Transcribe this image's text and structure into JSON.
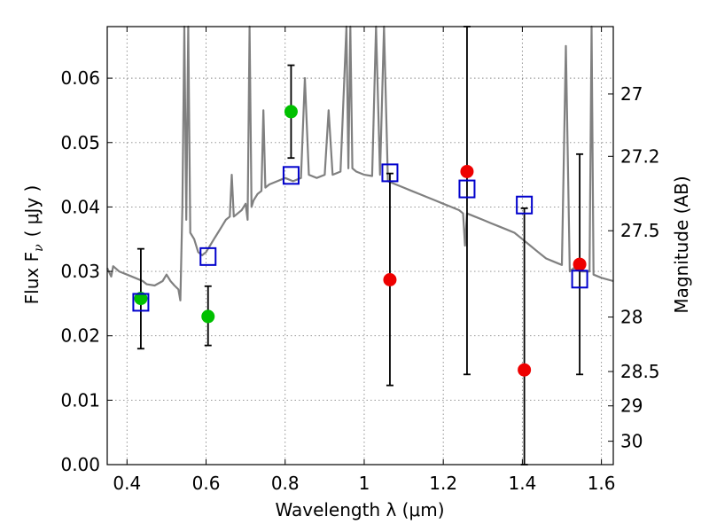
{
  "chart_data": {
    "type": "scatter",
    "xlabel": "Wavelength  λ (μm)",
    "ylabel": "Flux  F",
    "ylabel_sub": "ν",
    "ylabel_unit": "( μJy )",
    "y2label": "Magnitude (AB)",
    "xlim": [
      0.35,
      1.63
    ],
    "ylim": [
      0.0,
      0.068
    ],
    "grid": true,
    "x_ticks": [
      {
        "v": 0.4,
        "label": "0.4"
      },
      {
        "v": 0.6,
        "label": "0.6"
      },
      {
        "v": 0.8,
        "label": "0.8"
      },
      {
        "v": 1.0,
        "label": "1"
      },
      {
        "v": 1.2,
        "label": "1.2"
      },
      {
        "v": 1.4,
        "label": "1.4"
      },
      {
        "v": 1.6,
        "label": "1.6"
      }
    ],
    "y_ticks": [
      {
        "v": 0.0,
        "label": "0.00"
      },
      {
        "v": 0.01,
        "label": "0.01"
      },
      {
        "v": 0.02,
        "label": "0.02"
      },
      {
        "v": 0.03,
        "label": "0.03"
      },
      {
        "v": 0.04,
        "label": "0.04"
      },
      {
        "v": 0.05,
        "label": "0.05"
      },
      {
        "v": 0.06,
        "label": "0.06"
      }
    ],
    "y2_ticks": [
      {
        "mag": 27,
        "label": "27"
      },
      {
        "mag": 27.2,
        "label": "27.2"
      },
      {
        "mag": 27.5,
        "label": "27.5"
      },
      {
        "mag": 28,
        "label": "28"
      },
      {
        "mag": 28.5,
        "label": "28.5"
      },
      {
        "mag": 29,
        "label": "29"
      },
      {
        "mag": 30,
        "label": "30"
      }
    ],
    "colors": {
      "sed": "#808080",
      "green": "#00c000",
      "red": "#ee0000",
      "blue": "#0000cc",
      "errorbar": "#000000",
      "grid": "#888888"
    },
    "series": [
      {
        "kind": "sed_line",
        "points": [
          [
            0.35,
            0.0305
          ],
          [
            0.36,
            0.0292
          ],
          [
            0.365,
            0.0308
          ],
          [
            0.38,
            0.03
          ],
          [
            0.4,
            0.0295
          ],
          [
            0.42,
            0.029
          ],
          [
            0.44,
            0.0285
          ],
          [
            0.45,
            0.028
          ],
          [
            0.47,
            0.0278
          ],
          [
            0.49,
            0.0285
          ],
          [
            0.5,
            0.0295
          ],
          [
            0.51,
            0.0285
          ],
          [
            0.52,
            0.0278
          ],
          [
            0.53,
            0.0272
          ],
          [
            0.535,
            0.0255
          ],
          [
            0.54,
            0.04
          ],
          [
            0.545,
            0.068
          ],
          [
            0.55,
            0.038
          ],
          [
            0.555,
            0.068
          ],
          [
            0.56,
            0.036
          ],
          [
            0.57,
            0.035
          ],
          [
            0.58,
            0.033
          ],
          [
            0.59,
            0.0325
          ],
          [
            0.6,
            0.033
          ],
          [
            0.61,
            0.034
          ],
          [
            0.62,
            0.035
          ],
          [
            0.63,
            0.036
          ],
          [
            0.64,
            0.037
          ],
          [
            0.65,
            0.038
          ],
          [
            0.66,
            0.0385
          ],
          [
            0.665,
            0.045
          ],
          [
            0.67,
            0.0385
          ],
          [
            0.68,
            0.039
          ],
          [
            0.69,
            0.0395
          ],
          [
            0.7,
            0.0405
          ],
          [
            0.705,
            0.038
          ],
          [
            0.71,
            0.068
          ],
          [
            0.715,
            0.04
          ],
          [
            0.72,
            0.041
          ],
          [
            0.73,
            0.042
          ],
          [
            0.74,
            0.0425
          ],
          [
            0.745,
            0.055
          ],
          [
            0.75,
            0.043
          ],
          [
            0.76,
            0.0435
          ],
          [
            0.78,
            0.044
          ],
          [
            0.8,
            0.0445
          ],
          [
            0.82,
            0.044
          ],
          [
            0.84,
            0.0445
          ],
          [
            0.85,
            0.06
          ],
          [
            0.86,
            0.045
          ],
          [
            0.88,
            0.0445
          ],
          [
            0.9,
            0.045
          ],
          [
            0.91,
            0.055
          ],
          [
            0.92,
            0.045
          ],
          [
            0.94,
            0.0455
          ],
          [
            0.955,
            0.068
          ],
          [
            0.96,
            0.046
          ],
          [
            0.965,
            0.068
          ],
          [
            0.97,
            0.046
          ],
          [
            0.98,
            0.0455
          ],
          [
            1.0,
            0.045
          ],
          [
            1.02,
            0.0448
          ],
          [
            1.03,
            0.068
          ],
          [
            1.04,
            0.045
          ],
          [
            1.05,
            0.068
          ],
          [
            1.06,
            0.044
          ],
          [
            1.08,
            0.0435
          ],
          [
            1.1,
            0.043
          ],
          [
            1.12,
            0.0425
          ],
          [
            1.14,
            0.042
          ],
          [
            1.16,
            0.0415
          ],
          [
            1.18,
            0.041
          ],
          [
            1.2,
            0.0405
          ],
          [
            1.22,
            0.04
          ],
          [
            1.24,
            0.0395
          ],
          [
            1.25,
            0.039
          ],
          [
            1.255,
            0.034
          ],
          [
            1.26,
            0.039
          ],
          [
            1.28,
            0.0385
          ],
          [
            1.3,
            0.038
          ],
          [
            1.32,
            0.0375
          ],
          [
            1.34,
            0.037
          ],
          [
            1.36,
            0.0365
          ],
          [
            1.38,
            0.036
          ],
          [
            1.4,
            0.035
          ],
          [
            1.42,
            0.034
          ],
          [
            1.44,
            0.033
          ],
          [
            1.46,
            0.032
          ],
          [
            1.48,
            0.0315
          ],
          [
            1.5,
            0.031
          ],
          [
            1.51,
            0.065
          ],
          [
            1.52,
            0.03
          ],
          [
            1.53,
            0.0305
          ],
          [
            1.55,
            0.03
          ],
          [
            1.57,
            0.03
          ],
          [
            1.575,
            0.068
          ],
          [
            1.58,
            0.0295
          ],
          [
            1.6,
            0.029
          ],
          [
            1.63,
            0.0285
          ]
        ]
      },
      {
        "kind": "green_points",
        "points": [
          {
            "x": 0.435,
            "y": 0.0258,
            "err_lo": 0.018,
            "err_hi": 0.0335
          },
          {
            "x": 0.605,
            "y": 0.023,
            "err_lo": 0.0185,
            "err_hi": 0.0277
          },
          {
            "x": 0.815,
            "y": 0.0548,
            "err_lo": 0.0476,
            "err_hi": 0.062
          }
        ]
      },
      {
        "kind": "red_points",
        "points": [
          {
            "x": 1.065,
            "y": 0.0287,
            "err_lo": 0.0123,
            "err_hi": 0.0452
          },
          {
            "x": 1.26,
            "y": 0.0455,
            "err_lo": 0.014,
            "err_hi": 0.068
          },
          {
            "x": 1.405,
            "y": 0.0147,
            "err_lo": 0.0,
            "err_hi": 0.0398
          },
          {
            "x": 1.545,
            "y": 0.0311,
            "err_lo": 0.014,
            "err_hi": 0.0482
          }
        ]
      },
      {
        "kind": "blue_squares",
        "points": [
          {
            "x": 0.435,
            "y": 0.0252
          },
          {
            "x": 0.605,
            "y": 0.0323
          },
          {
            "x": 0.815,
            "y": 0.0449
          },
          {
            "x": 1.065,
            "y": 0.0453
          },
          {
            "x": 1.26,
            "y": 0.0428
          },
          {
            "x": 1.405,
            "y": 0.0403
          },
          {
            "x": 1.545,
            "y": 0.0288
          }
        ]
      }
    ]
  }
}
